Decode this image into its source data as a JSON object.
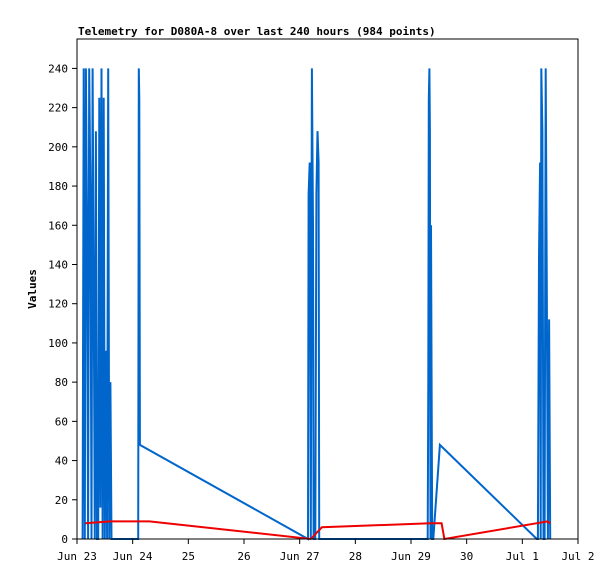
{
  "chart_data": {
    "type": "line",
    "title": "Telemetry for D080A-8 over last 240 hours (984 points)",
    "ylabel": "Values",
    "xlabel": "",
    "ylim": [
      0,
      255
    ],
    "xlim": [
      23,
      32
    ],
    "grid": false,
    "y_ticks": [
      0,
      20,
      40,
      60,
      80,
      100,
      120,
      140,
      160,
      180,
      200,
      220,
      240
    ],
    "x_ticks": [
      {
        "x": 23,
        "label": "Jun 23"
      },
      {
        "x": 24,
        "label": "Jun 24"
      },
      {
        "x": 25,
        "label": "25"
      },
      {
        "x": 26,
        "label": "26"
      },
      {
        "x": 27,
        "label": "Jun 27"
      },
      {
        "x": 28,
        "label": "28"
      },
      {
        "x": 29,
        "label": "Jun 29"
      },
      {
        "x": 30,
        "label": "30"
      },
      {
        "x": 31,
        "label": "Jul 1"
      },
      {
        "x": 32,
        "label": "Jul 2"
      }
    ],
    "series": [
      {
        "color": "#ee0000",
        "x": [
          23.15,
          23.6,
          24.3,
          27.2,
          27.4,
          29.35,
          29.55,
          29.6,
          31.45,
          31.5
        ],
        "y": [
          8,
          9,
          9,
          0,
          6,
          8,
          8,
          0,
          9,
          8
        ]
      },
      {
        "color": "#0066cc",
        "x": [
          23.1,
          23.12,
          23.14,
          23.16,
          23.18,
          23.2,
          23.22,
          23.24,
          23.26,
          23.28,
          23.3,
          23.32,
          23.34,
          23.36,
          23.38,
          23.4,
          23.42,
          23.44,
          23.46,
          23.48,
          23.5,
          23.52,
          23.54,
          23.56,
          23.58,
          23.6,
          23.62,
          23.64,
          24.1,
          24.11,
          24.12,
          24.13,
          27.15,
          27.16,
          27.18,
          27.19,
          27.2,
          27.22,
          27.24,
          27.25,
          27.28,
          27.3,
          27.32,
          27.34,
          27.35,
          29.3,
          29.31,
          29.32,
          29.33,
          29.34,
          29.35,
          29.36,
          29.38,
          29.4,
          29.52,
          31.26,
          31.28,
          31.3,
          31.32,
          31.33,
          31.34,
          31.36,
          31.38,
          31.4,
          31.42,
          31.44,
          31.46,
          31.48,
          31.5
        ],
        "y": [
          0,
          240,
          0,
          240,
          160,
          0,
          240,
          176,
          0,
          240,
          128,
          0,
          208,
          0,
          0,
          225,
          16,
          240,
          0,
          225,
          0,
          96,
          0,
          240,
          0,
          80,
          0,
          0,
          0,
          240,
          224,
          48,
          0,
          176,
          192,
          128,
          0,
          240,
          160,
          0,
          0,
          176,
          208,
          192,
          0,
          0,
          80,
          224,
          240,
          208,
          0,
          160,
          0,
          0,
          48,
          0,
          0,
          144,
          192,
          0,
          240,
          208,
          0,
          0,
          240,
          128,
          0,
          112,
          0
        ]
      }
    ]
  }
}
